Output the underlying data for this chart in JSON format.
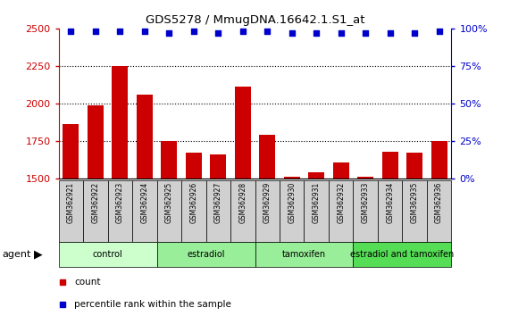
{
  "title": "GDS5278 / MmugDNA.16642.1.S1_at",
  "samples": [
    "GSM362921",
    "GSM362922",
    "GSM362923",
    "GSM362924",
    "GSM362925",
    "GSM362926",
    "GSM362927",
    "GSM362928",
    "GSM362929",
    "GSM362930",
    "GSM362931",
    "GSM362932",
    "GSM362933",
    "GSM362934",
    "GSM362935",
    "GSM362936"
  ],
  "counts": [
    1860,
    1990,
    2250,
    2060,
    1750,
    1670,
    1660,
    2110,
    1790,
    1510,
    1540,
    1610,
    1510,
    1680,
    1670,
    1750
  ],
  "percentile": [
    98,
    98,
    98,
    98,
    97,
    98,
    97,
    98,
    98,
    97,
    97,
    97,
    97,
    97,
    97,
    98
  ],
  "ylim_left": [
    1500,
    2500
  ],
  "ylim_right": [
    0,
    100
  ],
  "yticks_left": [
    1500,
    1750,
    2000,
    2250,
    2500
  ],
  "yticks_right": [
    0,
    25,
    50,
    75,
    100
  ],
  "bar_color": "#cc0000",
  "dot_color": "#0000cc",
  "groups": [
    {
      "label": "control",
      "start": 0,
      "end": 4
    },
    {
      "label": "estradiol",
      "start": 4,
      "end": 8
    },
    {
      "label": "tamoxifen",
      "start": 8,
      "end": 12
    },
    {
      "label": "estradiol and tamoxifen",
      "start": 12,
      "end": 16
    }
  ],
  "group_bg_colors": [
    "#ccffcc",
    "#99ee99",
    "#99ee99",
    "#55dd55"
  ],
  "sample_box_color": "#d0d0d0",
  "agent_label": "agent",
  "legend_count_color": "#cc0000",
  "legend_dot_color": "#0000cc",
  "tick_color_left": "#cc0000",
  "tick_color_right": "#0000cc",
  "dotted_lines": [
    1750,
    2000,
    2250
  ],
  "fig_width": 5.71,
  "fig_height": 3.54,
  "dpi": 100
}
